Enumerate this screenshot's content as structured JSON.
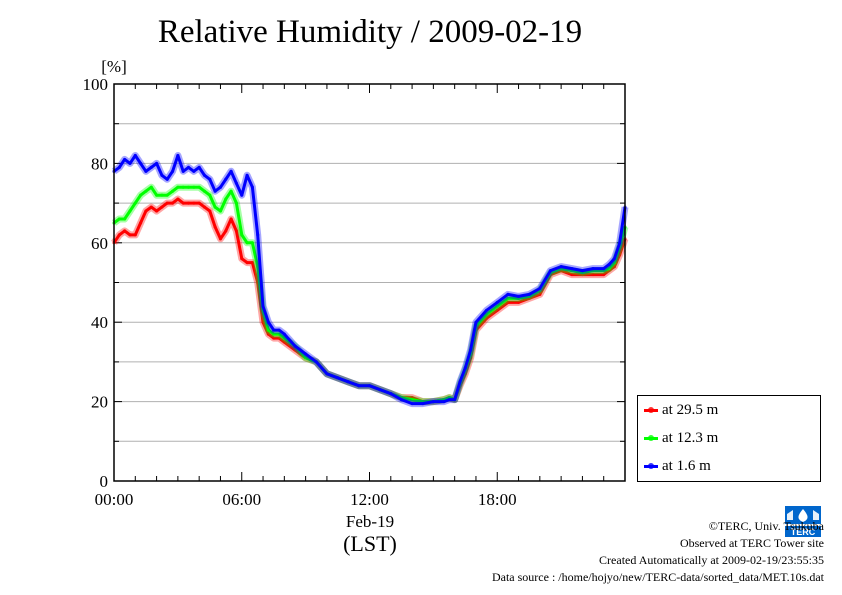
{
  "page_title": "Relative Humidity / 2009-02-19",
  "chart_data": {
    "type": "line",
    "title": "Relative Humidity / 2009-02-19",
    "ylabel": "[%]",
    "xlabel": "(LST)",
    "x_date_label": "Feb-19",
    "ylim": [
      0,
      100
    ],
    "xlim": [
      0,
      24
    ],
    "y_ticks": [
      "0",
      "20",
      "40",
      "60",
      "80",
      "100"
    ],
    "x_ticks": [
      "00:00",
      "06:00",
      "12:00",
      "18:00"
    ],
    "grid": true,
    "legend_position": "right",
    "series": [
      {
        "name": "at 29.5 m",
        "color": "#ff0000",
        "x": [
          0,
          0.25,
          0.5,
          0.75,
          1.0,
          1.25,
          1.5,
          1.75,
          2.0,
          2.25,
          2.5,
          2.75,
          3.0,
          3.25,
          3.5,
          3.75,
          4.0,
          4.25,
          4.5,
          4.75,
          5.0,
          5.25,
          5.5,
          5.75,
          6.0,
          6.25,
          6.5,
          6.75,
          7.0,
          7.25,
          7.5,
          7.75,
          8.0,
          8.5,
          9.0,
          9.5,
          10.0,
          10.5,
          11.0,
          11.5,
          12.0,
          12.5,
          13.0,
          13.5,
          14.0,
          14.5,
          15.0,
          15.5,
          15.75,
          16.0,
          16.25,
          16.5,
          16.75,
          17.0,
          17.5,
          18.0,
          18.5,
          19.0,
          19.5,
          20.0,
          20.5,
          21.0,
          21.5,
          22.0,
          22.5,
          23.0,
          23.25,
          23.5,
          23.75,
          24.0
        ],
        "y": [
          60,
          62,
          63,
          62,
          62,
          65,
          68,
          69,
          68,
          69,
          70,
          70,
          71,
          70,
          70,
          70,
          70,
          69,
          68,
          64,
          61,
          63,
          66,
          63,
          56,
          55,
          55,
          50,
          40,
          37,
          36,
          36,
          35,
          33,
          31,
          30,
          27,
          26,
          25,
          24,
          24,
          23,
          22,
          21,
          21,
          20,
          20,
          20.5,
          21,
          20.5,
          24,
          27,
          31,
          38,
          41,
          43,
          45,
          45,
          46,
          47,
          52,
          53,
          52,
          52,
          52,
          52,
          53,
          54,
          57,
          61
        ]
      },
      {
        "name": "at 12.3 m",
        "color": "#00ff00",
        "x": [
          0,
          0.25,
          0.5,
          0.75,
          1.0,
          1.25,
          1.5,
          1.75,
          2.0,
          2.25,
          2.5,
          2.75,
          3.0,
          3.25,
          3.5,
          3.75,
          4.0,
          4.25,
          4.5,
          4.75,
          5.0,
          5.25,
          5.5,
          5.75,
          6.0,
          6.25,
          6.5,
          6.75,
          7.0,
          7.25,
          7.5,
          7.75,
          8.0,
          8.5,
          9.0,
          9.5,
          10.0,
          10.5,
          11.0,
          11.5,
          12.0,
          12.5,
          13.0,
          13.5,
          14.0,
          14.5,
          15.0,
          15.5,
          15.75,
          16.0,
          16.25,
          16.5,
          16.75,
          17.0,
          17.5,
          18.0,
          18.5,
          19.0,
          19.5,
          20.0,
          20.5,
          21.0,
          21.5,
          22.0,
          22.5,
          23.0,
          23.25,
          23.5,
          23.75,
          24.0
        ],
        "y": [
          65,
          66,
          66,
          68,
          70,
          72,
          73,
          74,
          72,
          72,
          72,
          73,
          74,
          74,
          74,
          74,
          74,
          73,
          72,
          69,
          68,
          71,
          73,
          70,
          62,
          60,
          60,
          54,
          43,
          38,
          37,
          37,
          36,
          34,
          31,
          30,
          27,
          26,
          25,
          24,
          24,
          23,
          22,
          21,
          20.5,
          20,
          20,
          20.5,
          21,
          20.5,
          24.5,
          28,
          32,
          39,
          42,
          44,
          46,
          46,
          46.5,
          48,
          52.5,
          53.5,
          53,
          52.5,
          53,
          53,
          53.5,
          55,
          59,
          64
        ]
      },
      {
        "name": "at 1.6 m",
        "color": "#0000ff",
        "x": [
          0,
          0.25,
          0.5,
          0.75,
          1.0,
          1.25,
          1.5,
          1.75,
          2.0,
          2.25,
          2.5,
          2.75,
          3.0,
          3.25,
          3.5,
          3.75,
          4.0,
          4.25,
          4.5,
          4.75,
          5.0,
          5.25,
          5.5,
          5.75,
          6.0,
          6.25,
          6.5,
          6.75,
          7.0,
          7.25,
          7.5,
          7.75,
          8.0,
          8.5,
          9.0,
          9.5,
          10.0,
          10.5,
          11.0,
          11.5,
          12.0,
          12.5,
          13.0,
          13.5,
          14.0,
          14.5,
          15.0,
          15.5,
          15.75,
          16.0,
          16.25,
          16.5,
          16.75,
          17.0,
          17.5,
          18.0,
          18.5,
          19.0,
          19.5,
          20.0,
          20.5,
          21.0,
          21.5,
          22.0,
          22.5,
          23.0,
          23.25,
          23.5,
          23.75,
          24.0
        ],
        "y": [
          78,
          79,
          81,
          80,
          82,
          80,
          78,
          79,
          80,
          77,
          76,
          78,
          82,
          78,
          79,
          78,
          79,
          77,
          76,
          73,
          74,
          76,
          78,
          75,
          72,
          77,
          74,
          62,
          44,
          40,
          38,
          38,
          37,
          34,
          32,
          30,
          27,
          26,
          25,
          24,
          24,
          23,
          22,
          20.5,
          19.5,
          19.5,
          20,
          20,
          20.5,
          20.5,
          25,
          28.5,
          33,
          40,
          43,
          45,
          47,
          46.5,
          47,
          48.5,
          53,
          54,
          53.5,
          53,
          53.5,
          53.5,
          54.5,
          56,
          60,
          69
        ]
      }
    ]
  },
  "footer": {
    "copyright": "©TERC, Univ. Tsukuba",
    "observed": "Observed at TERC Tower site",
    "created": "Created Automatically at 2009-02-19/23:55:35",
    "source": "Data source : /home/hojyo/new/TERC-data/sorted_data/MET.10s.dat"
  },
  "logo": {
    "icon": "terc-logo-icon",
    "text": "TERC",
    "color": "#0066cc"
  }
}
